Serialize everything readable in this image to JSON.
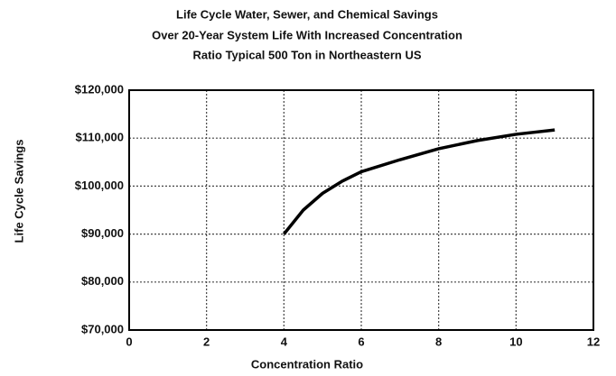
{
  "chart_data": {
    "type": "line",
    "title": [
      "Life Cycle Water, Sewer, and Chemical Savings",
      "Over 20-Year System Life With Increased Concentration",
      "Ratio Typical 500 Ton in Northeastern US"
    ],
    "x_label": "Concentration Ratio",
    "y_label": "Life Cycle Savings",
    "series": [
      {
        "color": "#000000",
        "x": [
          4,
          4.5,
          5,
          5.5,
          6,
          7,
          8,
          9,
          10,
          11
        ],
        "values": [
          90000,
          95000,
          98500,
          101000,
          103000,
          105500,
          107800,
          109500,
          110800,
          111700
        ]
      }
    ],
    "xlim": [
      0,
      12
    ],
    "xticks": [
      0,
      2,
      4,
      6,
      8,
      10,
      12
    ],
    "ylim": [
      70000,
      120000
    ],
    "yticks": [
      {
        "value": 70000,
        "label": "$70,000"
      },
      {
        "value": 80000,
        "label": "$80,000"
      },
      {
        "value": 90000,
        "label": "$90,000"
      },
      {
        "value": 100000,
        "label": "$100,000"
      },
      {
        "value": 110000,
        "label": "$110,000"
      },
      {
        "value": 120000,
        "label": "$120,000"
      }
    ],
    "grid": true
  }
}
